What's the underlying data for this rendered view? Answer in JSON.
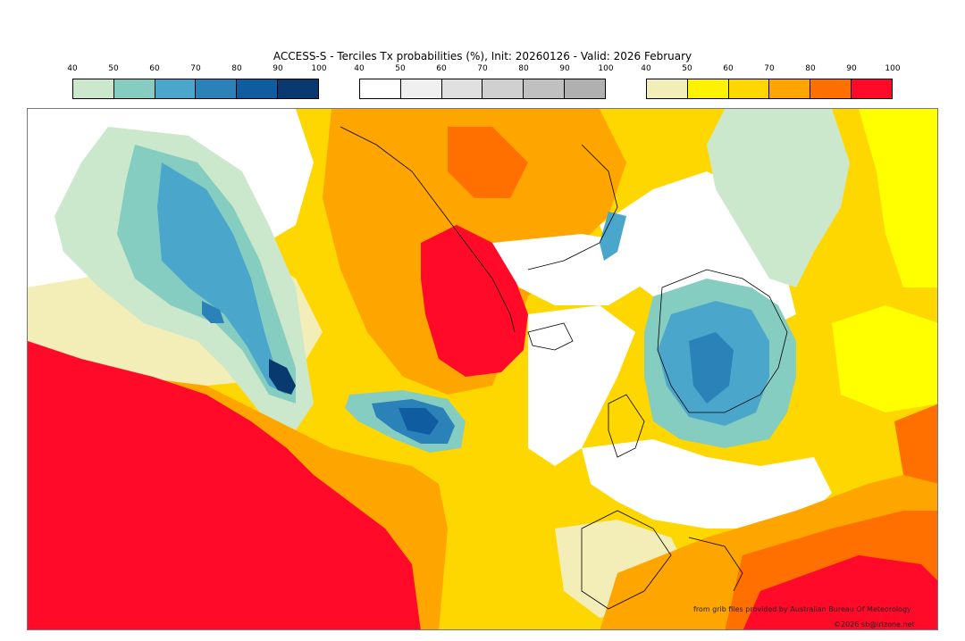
{
  "title": "ACCESS-S - Terciles Tx probabilities (%), Init: 20260126 - Valid: 2026 February",
  "colorbars": {
    "below": {
      "ticks": [
        "40",
        "50",
        "60",
        "70",
        "80",
        "90",
        "100"
      ],
      "colors": [
        "#cbe8cc",
        "#86cdc1",
        "#4aa7cb",
        "#2a82b8",
        "#0f5da0",
        "#08396f"
      ]
    },
    "normal": {
      "ticks": [
        "40",
        "50",
        "60",
        "70",
        "80",
        "90",
        "100"
      ],
      "colors": [
        "#ffffff",
        "#f0f0f0",
        "#e0e0e0",
        "#d0d0d0",
        "#c0c0c0",
        "#b0b0b0"
      ]
    },
    "above": {
      "ticks": [
        "40",
        "50",
        "60",
        "70",
        "80",
        "90",
        "100"
      ],
      "colors": [
        "#f3edb8",
        "#fff200",
        "#ffd700",
        "#ffa500",
        "#ff7000",
        "#ff0a28"
      ]
    }
  },
  "credits": {
    "source": "from grib files provided by Australian Bureau Of Meteorology",
    "copyright": "©2026 sb@irizone.net"
  }
}
